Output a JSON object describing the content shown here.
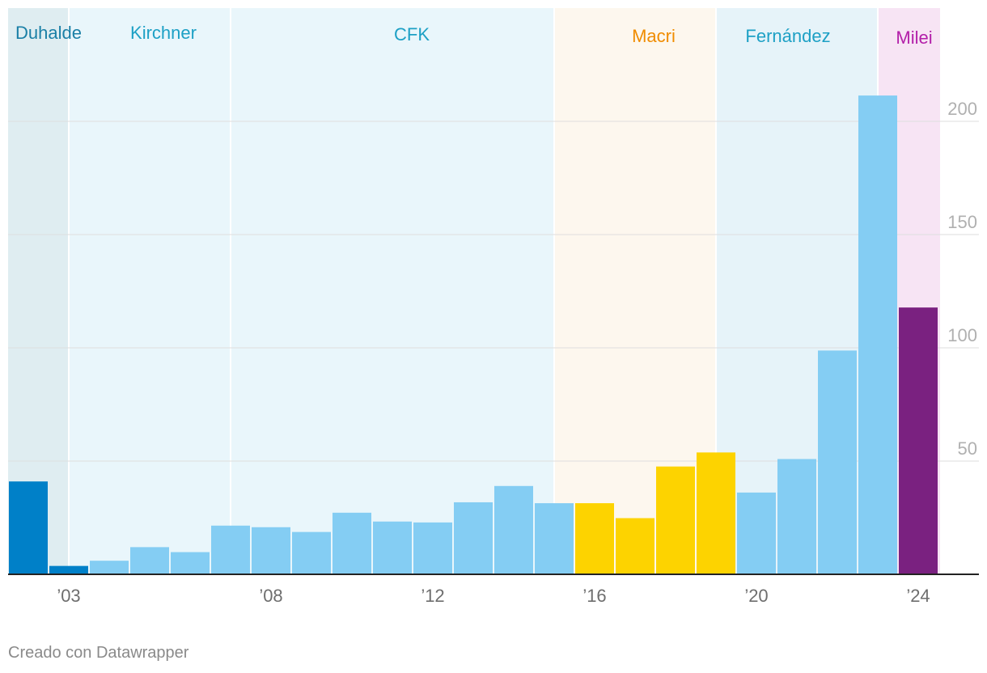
{
  "chart_data": {
    "type": "bar",
    "title": "",
    "xlabel": "",
    "ylabel": "",
    "ylim": [
      0,
      250
    ],
    "y_ticks": [
      50,
      100,
      150,
      200
    ],
    "y_axis_side": "right",
    "grid": true,
    "x_tick_labels": [
      "’03",
      "’08",
      "’12",
      "’16",
      "’20",
      "’24"
    ],
    "x_tick_years": [
      2003,
      2008,
      2012,
      2016,
      2020,
      2024
    ],
    "periods": [
      {
        "label": "Duhalde",
        "start_year": 2002,
        "end_year": 2003,
        "label_color": "#1a7fa6",
        "fill": "#dfedf1"
      },
      {
        "label": "Kirchner",
        "start_year": 2003,
        "end_year": 2007,
        "label_color": "#1da0c5",
        "fill": "#e9f6fb"
      },
      {
        "label": "CFK",
        "start_year": 2007,
        "end_year": 2015,
        "label_color": "#1da0c5",
        "fill": "#e9f6fb"
      },
      {
        "label": "Macri",
        "start_year": 2015,
        "end_year": 2019,
        "label_color": "#f08c00",
        "fill": "#fdf7ee"
      },
      {
        "label": "Fernández",
        "start_year": 2019,
        "end_year": 2023,
        "label_color": "#1da0c5",
        "fill": "#e6f3f9"
      },
      {
        "label": "Milei",
        "start_year": 2023,
        "end_year": 2024,
        "label_color": "#b31fa9",
        "fill": "#f7e4f4"
      }
    ],
    "bars": [
      {
        "year": 2002,
        "value": 41,
        "color": "#0080c8"
      },
      {
        "year": 2003,
        "value": 3.7,
        "color": "#0080c8"
      },
      {
        "year": 2004,
        "value": 6,
        "color": "#84cdf3"
      },
      {
        "year": 2005,
        "value": 12,
        "color": "#84cdf3"
      },
      {
        "year": 2006,
        "value": 9.8,
        "color": "#84cdf3"
      },
      {
        "year": 2007,
        "value": 21.5,
        "color": "#84cdf3"
      },
      {
        "year": 2008,
        "value": 20.8,
        "color": "#84cdf3"
      },
      {
        "year": 2009,
        "value": 18.7,
        "color": "#84cdf3"
      },
      {
        "year": 2010,
        "value": 27.2,
        "color": "#84cdf3"
      },
      {
        "year": 2011,
        "value": 23.3,
        "color": "#84cdf3"
      },
      {
        "year": 2012,
        "value": 22.9,
        "color": "#84cdf3"
      },
      {
        "year": 2013,
        "value": 31.8,
        "color": "#84cdf3"
      },
      {
        "year": 2014,
        "value": 39,
        "color": "#84cdf3"
      },
      {
        "year": 2015,
        "value": 31.4,
        "color": "#84cdf3"
      },
      {
        "year": 2016,
        "value": 31.4,
        "color": "#fdd300"
      },
      {
        "year": 2017,
        "value": 24.8,
        "color": "#fdd300"
      },
      {
        "year": 2018,
        "value": 47.6,
        "color": "#fdd300"
      },
      {
        "year": 2019,
        "value": 53.8,
        "color": "#fdd300"
      },
      {
        "year": 2020,
        "value": 36.1,
        "color": "#84cdf3"
      },
      {
        "year": 2021,
        "value": 50.9,
        "color": "#84cdf3"
      },
      {
        "year": 2022,
        "value": 98.8,
        "color": "#84cdf3"
      },
      {
        "year": 2023,
        "value": 211.4,
        "color": "#84cdf3"
      },
      {
        "year": 2024,
        "value": 117.8,
        "color": "#7a2180"
      }
    ]
  },
  "footer": {
    "credit": "Creado con Datawrapper"
  }
}
